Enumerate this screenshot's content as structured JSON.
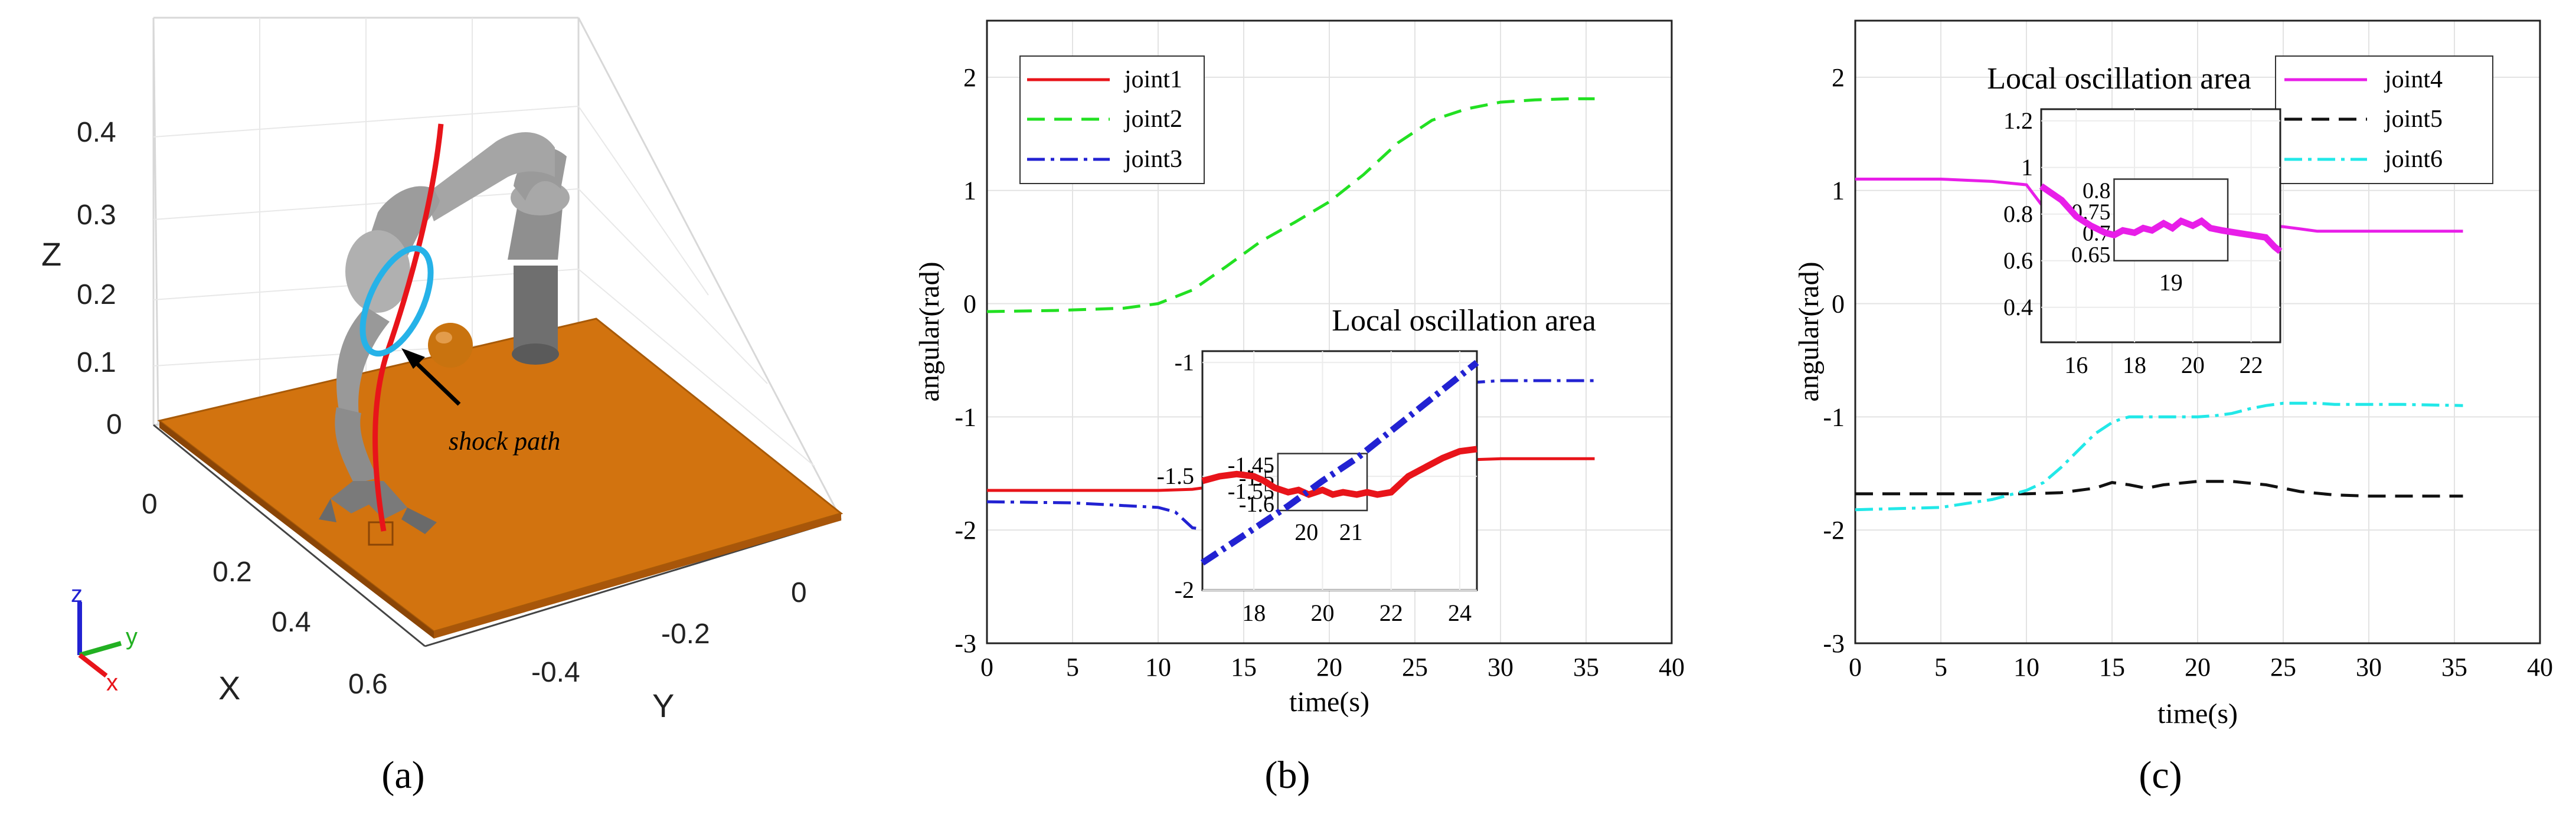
{
  "panel_labels": {
    "a": "(a)",
    "b": "(b)",
    "c": "(c)"
  },
  "panel_a": {
    "z_label": "Z",
    "x_label": "X",
    "y_label": "Y",
    "z_ticks": [
      "0.4",
      "0.3",
      "0.2",
      "0.1",
      "0"
    ],
    "x_ticks": [
      "0",
      "0.2",
      "0.4",
      "0.6"
    ],
    "y_ticks": [
      "0",
      "-0.2",
      "-0.4"
    ],
    "annotation": "shock path",
    "triad": {
      "z": "z",
      "y": "y",
      "x": "x"
    },
    "colors": {
      "table": "#d2730f",
      "ball": "#c9730f",
      "path": "#e8141a",
      "ellipse": "#26b2e8",
      "robot": "#8a8a8a"
    }
  },
  "chart_data": [
    {
      "type": "line",
      "title": "",
      "xlabel": "time(s)",
      "ylabel": "angular(rad)",
      "xlim": [
        0,
        40
      ],
      "ylim": [
        -3,
        2.5
      ],
      "xticks": [
        0,
        5,
        10,
        15,
        20,
        25,
        30,
        35,
        40
      ],
      "yticks": [
        -3,
        -2,
        -1,
        0,
        1,
        2
      ],
      "grid": true,
      "legend": "top-left",
      "series": [
        {
          "name": "joint1",
          "color": "#e8141a",
          "dash": "solid",
          "x": [
            0,
            5,
            10,
            12,
            13,
            14,
            15,
            16,
            17,
            18,
            19,
            20,
            21,
            22,
            23,
            24,
            26,
            28,
            30,
            32,
            34,
            35.5
          ],
          "y": [
            -1.65,
            -1.65,
            -1.65,
            -1.64,
            -1.62,
            -1.58,
            -1.55,
            -1.52,
            -1.55,
            -1.58,
            -1.6,
            -1.62,
            -1.63,
            -1.63,
            -1.55,
            -1.48,
            -1.42,
            -1.38,
            -1.37,
            -1.37,
            -1.37,
            -1.37
          ]
        },
        {
          "name": "joint2",
          "color": "#22e022",
          "dash": "dashed",
          "x": [
            0,
            4,
            8,
            10,
            12,
            14,
            16,
            18,
            20,
            22,
            24,
            26,
            28,
            30,
            32,
            34,
            35.5
          ],
          "y": [
            -0.07,
            -0.06,
            -0.04,
            0.0,
            0.12,
            0.33,
            0.55,
            0.72,
            0.9,
            1.14,
            1.42,
            1.62,
            1.72,
            1.78,
            1.8,
            1.81,
            1.81
          ],
          "vmin": -3,
          "vmax": 2.5
        },
        {
          "name": "joint3",
          "color": "#2222d2",
          "dash": "dashdot",
          "x": [
            0,
            5,
            10,
            11,
            12,
            13,
            14,
            15,
            16,
            17,
            18,
            19,
            20,
            21,
            22,
            23,
            24,
            25,
            26,
            27,
            28,
            29,
            30,
            32,
            34,
            35.5
          ],
          "y": [
            -1.75,
            -1.76,
            -1.8,
            -1.84,
            -1.98,
            -2.0,
            -1.94,
            -1.88,
            -1.8,
            -1.72,
            -1.62,
            -1.5,
            -1.4,
            -1.3,
            -1.2,
            -1.1,
            -1.0,
            -0.9,
            -0.8,
            -0.72,
            -0.7,
            -0.69,
            -0.68,
            -0.68,
            -0.68,
            -0.68
          ]
        }
      ],
      "inset": {
        "title": "Local oscillation area",
        "xlim": [
          16.5,
          24.5
        ],
        "ylim": [
          -2,
          -0.95
        ],
        "xticks": [
          18,
          20,
          22,
          24
        ],
        "yticks": [
          -2,
          -1.5,
          -1
        ],
        "zoom_box": {
          "x": [
            18.7,
            21.3
          ],
          "y": [
            -1.65,
            -1.4
          ],
          "xticks": [
            20,
            21
          ],
          "yticks": [
            -1.45,
            -1.5,
            -1.55,
            -1.6
          ]
        },
        "series": [
          {
            "name": "joint1",
            "color": "#e8141a",
            "x": [
              16.5,
              17,
              17.5,
              18,
              18.3,
              18.6,
              19,
              19.3,
              19.6,
              20,
              20.3,
              20.6,
              21,
              21.3,
              21.6,
              22,
              22.5,
              23,
              23.5,
              24,
              24.5
            ],
            "y": [
              -1.52,
              -1.5,
              -1.49,
              -1.5,
              -1.52,
              -1.55,
              -1.57,
              -1.56,
              -1.58,
              -1.56,
              -1.58,
              -1.57,
              -1.58,
              -1.57,
              -1.58,
              -1.57,
              -1.5,
              -1.46,
              -1.42,
              -1.39,
              -1.38
            ]
          },
          {
            "name": "joint3",
            "color": "#2222d2",
            "x": [
              16.5,
              18,
              19,
              20,
              21,
              22,
              23,
              24,
              24.5
            ],
            "y": [
              -1.88,
              -1.73,
              -1.63,
              -1.52,
              -1.42,
              -1.3,
              -1.18,
              -1.06,
              -1.0
            ]
          }
        ]
      }
    },
    {
      "type": "line",
      "title": "",
      "xlabel": "time(s)",
      "ylabel": "angular(rad)",
      "xlim": [
        0,
        40
      ],
      "ylim": [
        -3,
        2.5
      ],
      "xticks": [
        0,
        5,
        10,
        15,
        20,
        25,
        30,
        35,
        40
      ],
      "yticks": [
        -3,
        -2,
        -1,
        0,
        1,
        2
      ],
      "grid": true,
      "legend": "top-right",
      "series": [
        {
          "name": "joint4",
          "color": "#e81ee8",
          "dash": "solid",
          "x": [
            0,
            5,
            8,
            10,
            11,
            13,
            15,
            17,
            19,
            21,
            23,
            25,
            26,
            26.5,
            27,
            30,
            33,
            35.5
          ],
          "y": [
            1.1,
            1.1,
            1.08,
            1.05,
            0.85,
            0.76,
            0.74,
            0.73,
            0.74,
            0.72,
            0.7,
            0.68,
            0.66,
            0.65,
            0.64,
            0.64,
            0.64,
            0.64
          ]
        },
        {
          "name": "joint5",
          "color": "#111111",
          "dash": "dashed",
          "x": [
            0,
            5,
            10,
            12,
            14,
            15,
            16,
            17,
            18,
            20,
            22,
            24,
            26,
            28,
            30,
            32,
            35.5
          ],
          "y": [
            -1.68,
            -1.68,
            -1.68,
            -1.67,
            -1.63,
            -1.58,
            -1.6,
            -1.63,
            -1.6,
            -1.57,
            -1.57,
            -1.6,
            -1.66,
            -1.69,
            -1.7,
            -1.7,
            -1.7
          ]
        },
        {
          "name": "joint6",
          "color": "#22e8e8",
          "dash": "dashdot",
          "x": [
            0,
            5,
            8,
            10,
            11,
            12,
            13,
            14,
            15,
            15.5,
            16,
            18,
            20,
            21,
            22,
            23,
            24,
            25,
            26,
            27,
            28,
            30,
            32,
            35.5
          ],
          "y": [
            -1.82,
            -1.8,
            -1.73,
            -1.65,
            -1.58,
            -1.45,
            -1.3,
            -1.15,
            -1.05,
            -1.02,
            -1.0,
            -1.0,
            -1.0,
            -0.99,
            -0.97,
            -0.93,
            -0.9,
            -0.88,
            -0.88,
            -0.88,
            -0.89,
            -0.89,
            -0.89,
            -0.9
          ]
        }
      ],
      "inset": {
        "title": "Local oscillation area",
        "xlim": [
          14.8,
          23
        ],
        "ylim": [
          0.25,
          1.25
        ],
        "xticks": [
          16,
          18,
          20,
          22
        ],
        "yticks": [
          0.4,
          0.6,
          0.8,
          1,
          1.2
        ],
        "zoom_box": {
          "x": [
            17.3,
            21.2
          ],
          "y": [
            0.6,
            0.95
          ],
          "xticks": [
            19
          ],
          "yticks": [
            0.8,
            0.75,
            0.7,
            0.65
          ]
        },
        "series": [
          {
            "name": "joint4",
            "color": "#e81ee8",
            "x": [
              14.8,
              15.5,
              16,
              16.5,
              17,
              17.3,
              17.6,
              18,
              18.3,
              18.6,
              19,
              19.3,
              19.6,
              20,
              20.3,
              20.6,
              21,
              21.5,
              22,
              22.5,
              22.8,
              23
            ],
            "y": [
              0.92,
              0.86,
              0.79,
              0.75,
              0.72,
              0.71,
              0.73,
              0.72,
              0.74,
              0.73,
              0.76,
              0.74,
              0.77,
              0.75,
              0.77,
              0.74,
              0.73,
              0.72,
              0.71,
              0.7,
              0.66,
              0.64
            ]
          }
        ]
      }
    }
  ]
}
